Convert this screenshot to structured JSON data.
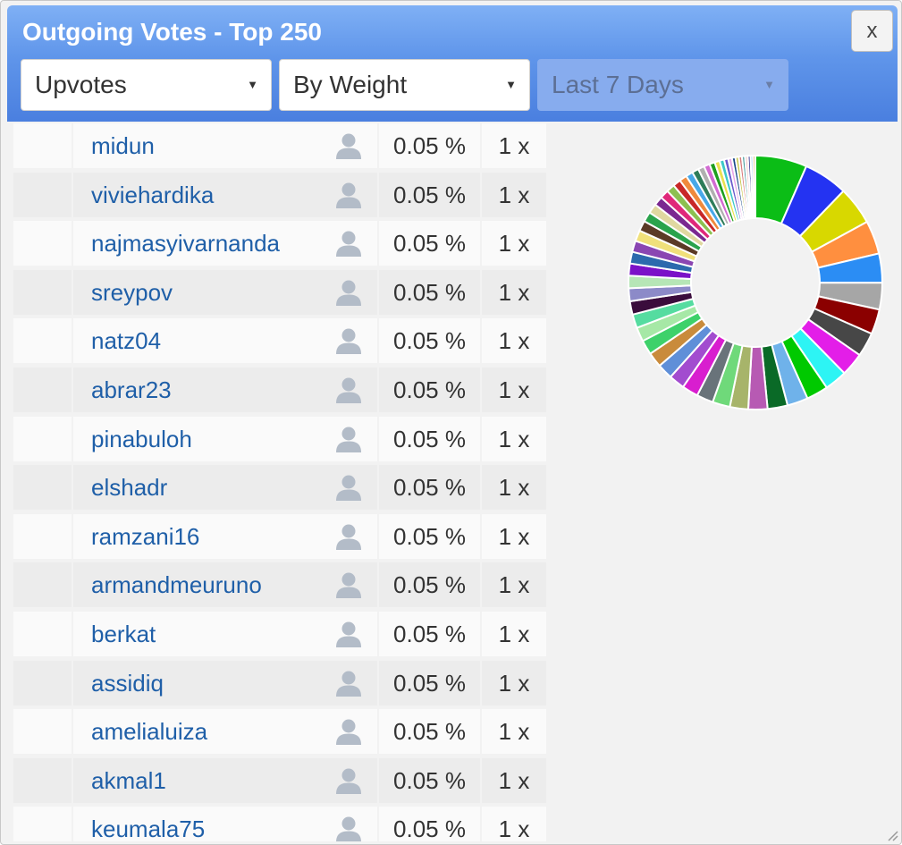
{
  "window": {
    "title": "Outgoing Votes - Top 250",
    "close_label": "x"
  },
  "filters": {
    "vote_type": "Upvotes",
    "sort": "By Weight",
    "period": "Last 7 Days"
  },
  "rows": [
    {
      "name": "midun",
      "percent": "0.05 %",
      "count": "1 x"
    },
    {
      "name": "viviehardika",
      "percent": "0.05 %",
      "count": "1 x"
    },
    {
      "name": "najmasyivarnanda",
      "percent": "0.05 %",
      "count": "1 x"
    },
    {
      "name": "sreypov",
      "percent": "0.05 %",
      "count": "1 x"
    },
    {
      "name": "natz04",
      "percent": "0.05 %",
      "count": "1 x"
    },
    {
      "name": "abrar23",
      "percent": "0.05 %",
      "count": "1 x"
    },
    {
      "name": "pinabuloh",
      "percent": "0.05 %",
      "count": "1 x"
    },
    {
      "name": "elshadr",
      "percent": "0.05 %",
      "count": "1 x"
    },
    {
      "name": "ramzani16",
      "percent": "0.05 %",
      "count": "1 x"
    },
    {
      "name": "armandmeuruno",
      "percent": "0.05 %",
      "count": "1 x"
    },
    {
      "name": "berkat",
      "percent": "0.05 %",
      "count": "1 x"
    },
    {
      "name": "assidiq",
      "percent": "0.05 %",
      "count": "1 x"
    },
    {
      "name": "amelialuiza",
      "percent": "0.05 %",
      "count": "1 x"
    },
    {
      "name": "akmal1",
      "percent": "0.05 %",
      "count": "1 x"
    },
    {
      "name": "keumala75",
      "percent": "0.05 %",
      "count": "1 x"
    }
  ],
  "donut_colors": [
    "#0bbd16",
    "#2433f2",
    "#d8d800",
    "#ff8f3f",
    "#2b8df4",
    "#a6a6a6",
    "#8b0000",
    "#474747",
    "#e31ee8",
    "#2df4f4",
    "#00c900",
    "#6fb2ea",
    "#0a6a27",
    "#b75ab3",
    "#a7b46a",
    "#6fd97a",
    "#69737a",
    "#d81ecf",
    "#a24ccf",
    "#5f8fd8",
    "#c98b3c",
    "#3ed16a",
    "#a6e8a6",
    "#55dca0",
    "#3a0c3c",
    "#8c8ac8",
    "#b6e6b6",
    "#7b12c8",
    "#2c6aad",
    "#8a46b2",
    "#f0e07a",
    "#5b3a26",
    "#2aa34c",
    "#e0d8a0",
    "#7a2890",
    "#e0287a",
    "#8cc050",
    "#c82828",
    "#f08a3c",
    "#48a8e8",
    "#2e7d5a",
    "#b0b0b0",
    "#d26ad2",
    "#1e9e1e",
    "#ebe050",
    "#3cc8c8",
    "#6a5acd",
    "#e8a8e8",
    "#1a4a8a",
    "#c8c850",
    "#d87a7a",
    "#50a0a0",
    "#f0c0c0",
    "#2a2a8a",
    "#a0d0f0",
    "#d0a050"
  ],
  "chart_data": {
    "type": "pie",
    "title": "",
    "note": "donut of vote weights by voter; segments decrease in size (largest first, many tiny slices)",
    "values": [
      6.2,
      5.3,
      4.6,
      4.0,
      3.5,
      3.2,
      3.0,
      2.9,
      2.8,
      2.7,
      2.6,
      2.5,
      2.4,
      2.3,
      2.2,
      2.1,
      2.0,
      1.95,
      1.9,
      1.85,
      1.8,
      1.75,
      1.7,
      1.65,
      1.6,
      1.55,
      1.5,
      1.45,
      1.4,
      1.35,
      1.3,
      1.25,
      1.2,
      1.15,
      1.1,
      1.05,
      1.0,
      0.95,
      0.9,
      0.85,
      0.8,
      0.75,
      0.7,
      0.65,
      0.6,
      0.55,
      0.5,
      0.45,
      0.42,
      0.4,
      0.38,
      0.36,
      0.34,
      0.32,
      0.3,
      0.28
    ]
  }
}
